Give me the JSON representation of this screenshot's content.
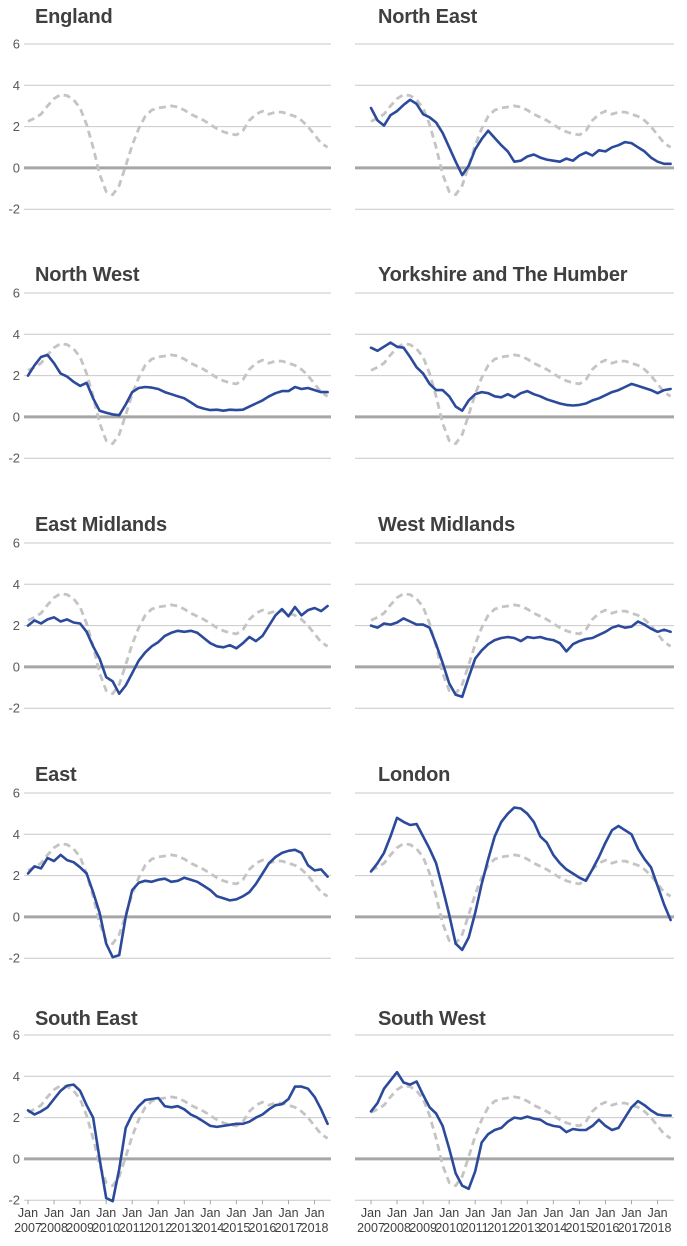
{
  "chart_data": {
    "type": "line",
    "title": "",
    "grid": true,
    "legend_position": "none",
    "ylim": [
      -2,
      6
    ],
    "yticks": [
      "6",
      "4",
      "2",
      "0",
      "-2"
    ],
    "ytick_values": [
      6,
      4,
      2,
      0,
      -2
    ],
    "xtick_month_label": "Jan",
    "xtick_years": [
      "2007",
      "2008",
      "2009",
      "2010",
      "2011",
      "2012",
      "2013",
      "2014",
      "2015",
      "2016",
      "2017",
      "2018"
    ],
    "x": [
      2007.0,
      2007.25,
      2007.5,
      2007.75,
      2008.0,
      2008.25,
      2008.5,
      2008.75,
      2009.0,
      2009.25,
      2009.5,
      2009.75,
      2010.0,
      2010.25,
      2010.5,
      2010.75,
      2011.0,
      2011.25,
      2011.5,
      2011.75,
      2012.0,
      2012.25,
      2012.5,
      2012.75,
      2013.0,
      2013.25,
      2013.5,
      2013.75,
      2014.0,
      2014.25,
      2014.5,
      2014.75,
      2015.0,
      2015.25,
      2015.5,
      2015.75,
      2016.0,
      2016.25,
      2016.5,
      2016.75,
      2017.0,
      2017.25,
      2017.5,
      2017.75,
      2018.0,
      2018.25,
      2018.5
    ],
    "reference_series": {
      "name": "England",
      "line_style": "dashed",
      "values": [
        2.25,
        2.4,
        2.6,
        3.0,
        3.35,
        3.55,
        3.5,
        3.3,
        2.9,
        2.1,
        1.0,
        -0.3,
        -1.15,
        -1.3,
        -0.85,
        0.1,
        1.1,
        1.9,
        2.5,
        2.8,
        2.9,
        2.95,
        3.0,
        2.95,
        2.8,
        2.6,
        2.45,
        2.3,
        2.1,
        1.9,
        1.75,
        1.65,
        1.6,
        1.8,
        2.3,
        2.6,
        2.75,
        2.6,
        2.7,
        2.7,
        2.6,
        2.5,
        2.3,
        2.0,
        1.6,
        1.2,
        1.0
      ]
    },
    "panels": [
      {
        "title": "England",
        "values": null
      },
      {
        "title": "North East",
        "values": [
          2.9,
          2.3,
          2.05,
          2.55,
          2.75,
          3.05,
          3.3,
          3.1,
          2.6,
          2.45,
          2.2,
          1.7,
          1.0,
          0.3,
          -0.35,
          0.1,
          0.9,
          1.4,
          1.8,
          1.45,
          1.1,
          0.8,
          0.3,
          0.35,
          0.55,
          0.65,
          0.5,
          0.4,
          0.35,
          0.3,
          0.45,
          0.35,
          0.6,
          0.75,
          0.6,
          0.85,
          0.8,
          1.0,
          1.1,
          1.25,
          1.2,
          1.0,
          0.8,
          0.5,
          0.3,
          0.2,
          0.2
        ]
      },
      {
        "title": "North West",
        "values": [
          2.0,
          2.5,
          2.9,
          3.0,
          2.6,
          2.1,
          1.95,
          1.7,
          1.5,
          1.65,
          0.9,
          0.3,
          0.2,
          0.12,
          0.08,
          0.6,
          1.2,
          1.4,
          1.45,
          1.42,
          1.35,
          1.2,
          1.1,
          1.0,
          0.9,
          0.7,
          0.5,
          0.4,
          0.33,
          0.35,
          0.3,
          0.35,
          0.33,
          0.35,
          0.5,
          0.65,
          0.8,
          1.0,
          1.15,
          1.25,
          1.25,
          1.45,
          1.35,
          1.4,
          1.3,
          1.2,
          1.2
        ]
      },
      {
        "title": "Yorkshire and The Humber",
        "values": [
          3.35,
          3.2,
          3.4,
          3.6,
          3.4,
          3.35,
          2.9,
          2.4,
          2.1,
          1.6,
          1.3,
          1.3,
          1.0,
          0.5,
          0.3,
          0.8,
          1.1,
          1.2,
          1.15,
          1.0,
          0.95,
          1.1,
          0.95,
          1.15,
          1.25,
          1.1,
          1.0,
          0.85,
          0.75,
          0.65,
          0.58,
          0.55,
          0.58,
          0.65,
          0.8,
          0.9,
          1.05,
          1.2,
          1.3,
          1.45,
          1.6,
          1.5,
          1.4,
          1.3,
          1.15,
          1.3,
          1.35
        ]
      },
      {
        "title": "East Midlands",
        "values": [
          2.0,
          2.25,
          2.1,
          2.3,
          2.4,
          2.2,
          2.3,
          2.15,
          2.1,
          1.7,
          1.0,
          0.4,
          -0.5,
          -0.7,
          -1.3,
          -0.9,
          -0.3,
          0.3,
          0.7,
          1.0,
          1.2,
          1.5,
          1.65,
          1.75,
          1.7,
          1.75,
          1.65,
          1.4,
          1.15,
          1.0,
          0.95,
          1.05,
          0.9,
          1.15,
          1.45,
          1.25,
          1.5,
          2.0,
          2.5,
          2.8,
          2.45,
          2.9,
          2.5,
          2.75,
          2.85,
          2.7,
          2.95
        ]
      },
      {
        "title": "West Midlands",
        "values": [
          2.0,
          1.9,
          2.1,
          2.05,
          2.15,
          2.35,
          2.2,
          2.05,
          2.05,
          1.9,
          1.1,
          0.2,
          -0.8,
          -1.35,
          -1.45,
          -0.5,
          0.4,
          0.8,
          1.1,
          1.3,
          1.4,
          1.45,
          1.4,
          1.25,
          1.45,
          1.4,
          1.45,
          1.35,
          1.3,
          1.15,
          0.75,
          1.1,
          1.25,
          1.35,
          1.4,
          1.55,
          1.7,
          1.9,
          2.0,
          1.9,
          1.95,
          2.2,
          2.05,
          1.85,
          1.7,
          1.8,
          1.7
        ]
      },
      {
        "title": "East",
        "values": [
          2.1,
          2.45,
          2.35,
          2.85,
          2.7,
          3.0,
          2.75,
          2.65,
          2.4,
          2.1,
          1.2,
          0.2,
          -1.3,
          -1.95,
          -1.85,
          0.0,
          1.3,
          1.65,
          1.75,
          1.7,
          1.8,
          1.85,
          1.7,
          1.75,
          1.9,
          1.8,
          1.7,
          1.5,
          1.3,
          1.0,
          0.9,
          0.8,
          0.85,
          1.0,
          1.2,
          1.6,
          2.1,
          2.6,
          2.9,
          3.1,
          3.2,
          3.25,
          3.1,
          2.5,
          2.25,
          2.3,
          1.95
        ]
      },
      {
        "title": "London",
        "values": [
          2.2,
          2.6,
          3.1,
          3.9,
          4.8,
          4.6,
          4.45,
          4.5,
          3.9,
          3.3,
          2.6,
          1.4,
          0.1,
          -1.3,
          -1.6,
          -1.0,
          0.2,
          1.6,
          2.8,
          3.9,
          4.6,
          5.0,
          5.3,
          5.25,
          5.0,
          4.6,
          3.9,
          3.6,
          3.0,
          2.6,
          2.3,
          2.1,
          1.9,
          1.75,
          2.3,
          2.9,
          3.6,
          4.2,
          4.4,
          4.2,
          4.0,
          3.3,
          2.8,
          2.4,
          1.5,
          0.6,
          -0.15
        ]
      },
      {
        "title": "South East",
        "values": [
          2.35,
          2.15,
          2.3,
          2.5,
          2.9,
          3.3,
          3.55,
          3.6,
          3.3,
          2.6,
          2.0,
          0.0,
          -1.9,
          -2.05,
          -0.5,
          1.5,
          2.15,
          2.55,
          2.85,
          2.9,
          2.95,
          2.55,
          2.5,
          2.55,
          2.4,
          2.15,
          2.0,
          1.8,
          1.6,
          1.55,
          1.6,
          1.65,
          1.7,
          1.7,
          1.8,
          2.0,
          2.15,
          2.4,
          2.6,
          2.65,
          2.9,
          3.5,
          3.5,
          3.4,
          3.0,
          2.4,
          1.7
        ]
      },
      {
        "title": "South West",
        "values": [
          2.3,
          2.7,
          3.4,
          3.8,
          4.2,
          3.7,
          3.6,
          3.75,
          3.1,
          2.5,
          2.2,
          1.6,
          0.5,
          -0.7,
          -1.3,
          -1.45,
          -0.6,
          0.8,
          1.2,
          1.4,
          1.5,
          1.8,
          2.0,
          1.95,
          2.05,
          1.95,
          1.9,
          1.7,
          1.6,
          1.55,
          1.3,
          1.45,
          1.4,
          1.4,
          1.6,
          1.9,
          1.6,
          1.4,
          1.5,
          2.0,
          2.5,
          2.8,
          2.6,
          2.35,
          2.15,
          2.1,
          2.1
        ]
      }
    ],
    "layout": {
      "grid_columns": 2,
      "y_labels_on": "left-column-only",
      "x_labels_on": "bottom-row-only"
    },
    "colors": {
      "region_line": "#2c4a9b",
      "reference_line": "#c4c4c4",
      "gridline": "#c9c9c9",
      "zero_line": "#a6a6a6",
      "title_text": "#3f3f3f",
      "y_axis_text": "#595959",
      "x_axis_text": "#3f3f3f"
    }
  }
}
